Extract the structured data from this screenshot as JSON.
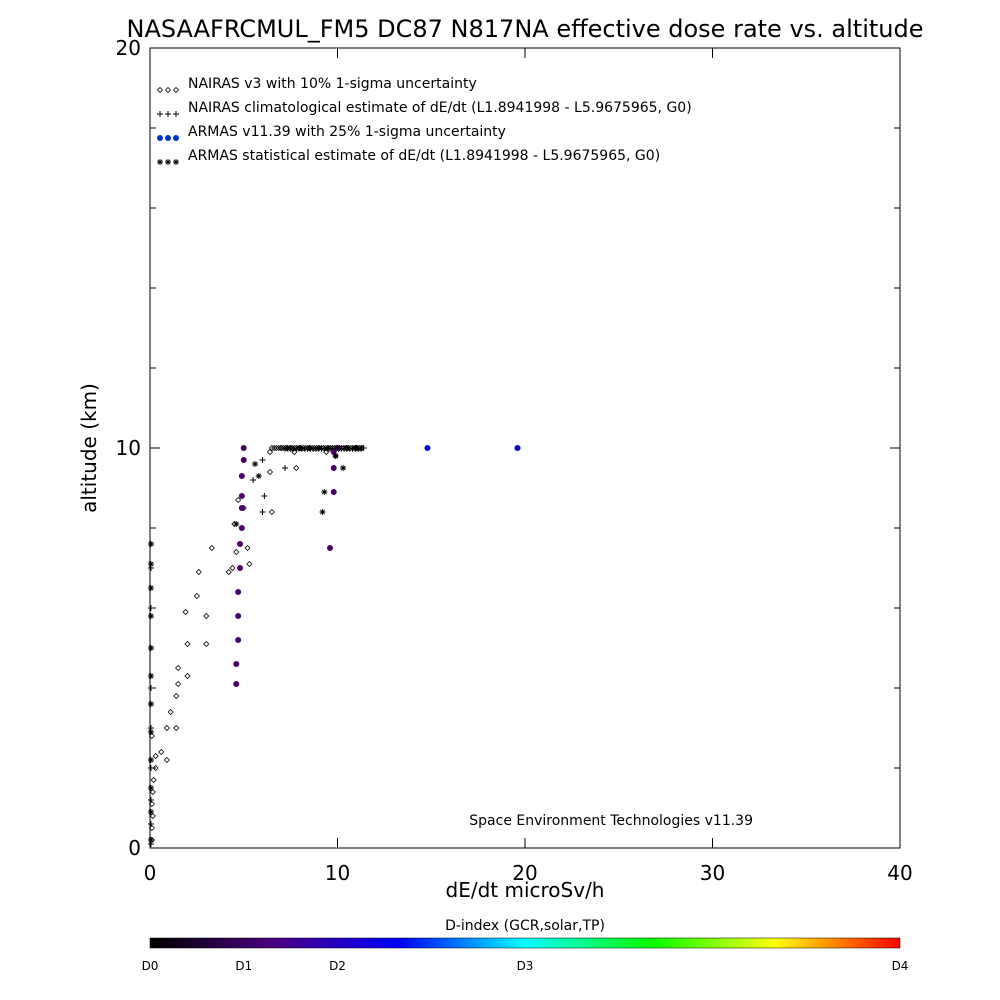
{
  "chart_data": {
    "type": "scatter",
    "title": "NASAAFRCMUL_FM5 DC87 N817NA effective dose rate vs. altitude",
    "xlabel": "dE/dt microSv/h",
    "ylabel": "altitude (km)",
    "xlim": [
      0,
      40
    ],
    "ylim": [
      0,
      20
    ],
    "x_ticks": [
      "0",
      "10",
      "20",
      "30",
      "40"
    ],
    "y_ticks": [
      "0",
      "10",
      "20"
    ],
    "legend_position": "top-left",
    "grid": false,
    "annotation": "Space Environment Technologies v11.39",
    "colorbar": {
      "title": "D-index (GCR,solar,TP)",
      "labels": [
        {
          "text": "D0",
          "value": 0
        },
        {
          "text": "D1",
          "value": 1
        },
        {
          "text": "D2",
          "value": 2
        },
        {
          "text": "D3",
          "value": 3
        },
        {
          "text": "D4",
          "value": 4
        }
      ],
      "label_positions": [
        0,
        0.125,
        0.25,
        0.5,
        1.0
      ],
      "colors": [
        "#000000",
        "#4b0082",
        "#0000ff",
        "#00ffff",
        "#00ff00",
        "#ffff00",
        "#ff0000"
      ]
    },
    "series": [
      {
        "name": "NAIRAS v3 with 10% 1-sigma uncertainty",
        "marker": "diamond",
        "color": "#000000",
        "points": [
          [
            0.1,
            0.2
          ],
          [
            0.1,
            0.5
          ],
          [
            0.15,
            0.8
          ],
          [
            0.1,
            1.1
          ],
          [
            0.15,
            1.4
          ],
          [
            0.2,
            1.7
          ],
          [
            0.3,
            2.0
          ],
          [
            0.3,
            2.3
          ],
          [
            0.1,
            2.8
          ],
          [
            0.9,
            2.2
          ],
          [
            0.6,
            2.4
          ],
          [
            1.4,
            3.0
          ],
          [
            0.9,
            3.0
          ],
          [
            1.1,
            3.4
          ],
          [
            1.4,
            3.8
          ],
          [
            1.5,
            4.1
          ],
          [
            1.5,
            4.5
          ],
          [
            2.0,
            4.3
          ],
          [
            2.0,
            5.1
          ],
          [
            3.0,
            5.1
          ],
          [
            1.9,
            5.9
          ],
          [
            3.0,
            5.8
          ],
          [
            2.5,
            6.3
          ],
          [
            2.6,
            6.9
          ],
          [
            3.3,
            7.5
          ],
          [
            4.2,
            6.9
          ],
          [
            4.4,
            7.0
          ],
          [
            4.6,
            7.4
          ],
          [
            5.2,
            7.5
          ],
          [
            5.3,
            7.1
          ],
          [
            4.5,
            8.1
          ],
          [
            4.7,
            8.7
          ],
          [
            5.0,
            8.5
          ],
          [
            6.5,
            8.4
          ],
          [
            6.4,
            9.4
          ],
          [
            7.8,
            9.5
          ],
          [
            6.4,
            9.9
          ],
          [
            7.0,
            10.0
          ],
          [
            7.5,
            10.0
          ],
          [
            8.0,
            10.0
          ],
          [
            8.5,
            10.0
          ],
          [
            9.0,
            10.0
          ],
          [
            9.5,
            10.0
          ],
          [
            10.0,
            10.0
          ],
          [
            10.5,
            10.0
          ],
          [
            11.0,
            10.0
          ],
          [
            7.7,
            9.9
          ],
          [
            9.4,
            9.9
          ],
          [
            9.9,
            9.8
          ]
        ]
      },
      {
        "name": "NAIRAS climatological estimate of dE/dt (L1.8941998 - L5.9675965, G0)",
        "marker": "plus",
        "color": "#000000",
        "points": [
          [
            0.05,
            0.1
          ],
          [
            0.05,
            0.6
          ],
          [
            0.05,
            1.2
          ],
          [
            0.05,
            2.0
          ],
          [
            0.05,
            3.0
          ],
          [
            0.05,
            4.0
          ],
          [
            0.05,
            5.0
          ],
          [
            0.05,
            6.0
          ],
          [
            0.05,
            7.0
          ],
          [
            0.05,
            7.6
          ],
          [
            4.8,
            7.6
          ],
          [
            5.5,
            9.2
          ],
          [
            6.0,
            9.7
          ],
          [
            6.1,
            8.8
          ],
          [
            6.0,
            8.4
          ],
          [
            7.2,
            9.5
          ],
          [
            7.3,
            10.0
          ],
          [
            8.0,
            10.0
          ],
          [
            8.5,
            10.0
          ],
          [
            9.0,
            10.0
          ],
          [
            9.5,
            10.0
          ],
          [
            10.0,
            10.0
          ],
          [
            10.5,
            10.0
          ],
          [
            11.0,
            10.0
          ],
          [
            11.4,
            10.0
          ]
        ]
      },
      {
        "name": "ARMAS v11.39 with 25% 1-sigma uncertainty",
        "marker": "dot",
        "color": "#0000cc",
        "points": [
          [
            4.6,
            4.1
          ],
          [
            4.6,
            4.6
          ],
          [
            4.7,
            5.2
          ],
          [
            4.7,
            5.8
          ],
          [
            4.7,
            6.4
          ],
          [
            4.8,
            7.0
          ],
          [
            4.8,
            7.6
          ],
          [
            4.9,
            8.0
          ],
          [
            4.9,
            8.5
          ],
          [
            4.9,
            8.8
          ],
          [
            4.9,
            9.3
          ],
          [
            5.0,
            9.7
          ],
          [
            5.0,
            10.0
          ],
          [
            9.6,
            7.5
          ],
          [
            9.8,
            8.9
          ],
          [
            9.8,
            9.5
          ],
          [
            9.8,
            9.9
          ],
          [
            10.0,
            10.0
          ],
          [
            14.8,
            10.0
          ],
          [
            19.6,
            10.0
          ]
        ]
      },
      {
        "name": "ARMAS statistical estimate of dE/dt (L1.8941998 - L5.9675965, G0)",
        "marker": "asterisk",
        "color": "#000000",
        "points": [
          [
            0.05,
            0.2
          ],
          [
            0.05,
            0.9
          ],
          [
            0.05,
            1.5
          ],
          [
            0.05,
            2.2
          ],
          [
            0.05,
            2.9
          ],
          [
            0.05,
            3.6
          ],
          [
            0.05,
            4.3
          ],
          [
            0.05,
            5.0
          ],
          [
            0.05,
            5.8
          ],
          [
            0.05,
            6.5
          ],
          [
            0.05,
            7.1
          ],
          [
            0.05,
            7.6
          ],
          [
            4.6,
            8.1
          ],
          [
            5.8,
            9.3
          ],
          [
            5.6,
            9.6
          ],
          [
            9.2,
            8.4
          ],
          [
            9.3,
            8.9
          ],
          [
            9.9,
            9.8
          ],
          [
            10.3,
            9.5
          ],
          [
            10.0,
            10.0
          ],
          [
            10.5,
            10.0
          ],
          [
            11.0,
            10.0
          ],
          [
            11.3,
            10.0
          ]
        ]
      }
    ]
  }
}
